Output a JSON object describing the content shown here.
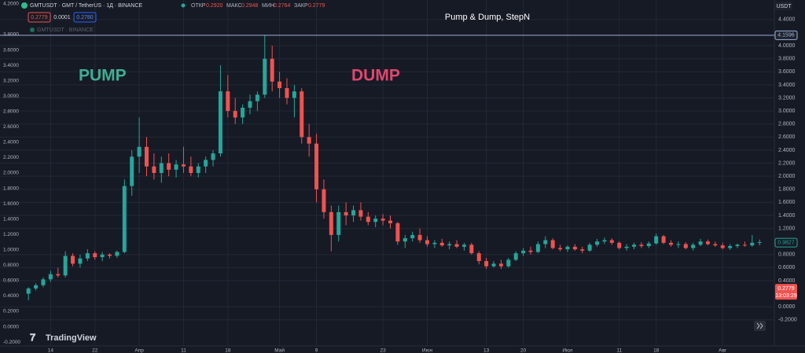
{
  "header": {
    "symbol": "GMTUSDT · GMT / TetherUS · 1Д · BINANCE",
    "ohlc": [
      {
        "label": "ОТКР",
        "value": "0.2920"
      },
      {
        "label": "МАКС",
        "value": "0.2948"
      },
      {
        "label": "МИН",
        "value": "0.2764"
      },
      {
        "label": "ЗАКР",
        "value": "0.2779"
      }
    ],
    "sell": "0.2779",
    "spread": "0.0001",
    "buy": "0.2780",
    "overlay": "GMTUSDT · BINANCE",
    "currency": "USDT",
    "logo": "TradingView"
  },
  "chart_data": {
    "type": "candlestick",
    "title": "Pump & Dump, StepN",
    "annotations": [
      {
        "text": "PUMP",
        "color": "#3fae92"
      },
      {
        "text": "DUMP",
        "color": "#e0476f"
      }
    ],
    "up_color": "#26a69a",
    "down_color": "#ef5350",
    "grid": true,
    "xlim": [
      -3,
      101
    ],
    "xticks": [
      {
        "value": 3,
        "label": "14"
      },
      {
        "value": 9,
        "label": "22"
      },
      {
        "value": 15,
        "label": "Апр"
      },
      {
        "value": 21,
        "label": "11"
      },
      {
        "value": 27,
        "label": "18"
      },
      {
        "value": 34,
        "label": "Май"
      },
      {
        "value": 39,
        "label": "9"
      },
      {
        "value": 48,
        "label": "23"
      },
      {
        "value": 54,
        "label": "Июн"
      },
      {
        "value": 62,
        "label": "13"
      },
      {
        "value": 67,
        "label": "20"
      },
      {
        "value": 73,
        "label": "Июл"
      },
      {
        "value": 80,
        "label": "11"
      },
      {
        "value": 85,
        "label": "18"
      },
      {
        "value": 94,
        "label": "Авг"
      }
    ],
    "ylim": [
      -0.6,
      4.7
    ],
    "yticks": [
      {
        "value": 4.4,
        "label": "4.4000"
      },
      {
        "value": 4.0,
        "label": "4.0000"
      },
      {
        "value": 3.8,
        "label": "3.8000"
      },
      {
        "value": 3.6,
        "label": "3.6000"
      },
      {
        "value": 3.4,
        "label": "3.4000"
      },
      {
        "value": 3.2,
        "label": "3.2000"
      },
      {
        "value": 3.0,
        "label": "3.0000"
      },
      {
        "value": 2.8,
        "label": "2.8000"
      },
      {
        "value": 2.6,
        "label": "2.6000"
      },
      {
        "value": 2.4,
        "label": "2.4000"
      },
      {
        "value": 2.2,
        "label": "2.2000"
      },
      {
        "value": 2.0,
        "label": "2.0000"
      },
      {
        "value": 1.8,
        "label": "1.8000"
      },
      {
        "value": 1.6,
        "label": "1.6000"
      },
      {
        "value": 1.4,
        "label": "1.4000"
      },
      {
        "value": 1.2,
        "label": "1.2000"
      },
      {
        "value": 0.8,
        "label": "0.8000"
      },
      {
        "value": 0.6,
        "label": "0.6000"
      },
      {
        "value": 0.4,
        "label": "0.4000"
      },
      {
        "value": 0,
        "label": "0.0000"
      },
      {
        "value": -0.2,
        "label": "-0.2000"
      }
    ],
    "left_ylim": [
      -0.25,
      4.25
    ],
    "left_yticks": [
      {
        "value": 4.2,
        "label": "4.2000"
      },
      {
        "value": 3.8,
        "label": "3.8000"
      },
      {
        "value": 3.6,
        "label": "3.6000"
      },
      {
        "value": 3.4,
        "label": "3.4000"
      },
      {
        "value": 3.2,
        "label": "3.2000"
      },
      {
        "value": 3.0,
        "label": "3.0000"
      },
      {
        "value": 2.8,
        "label": "2.8000"
      },
      {
        "value": 2.6,
        "label": "2.6000"
      },
      {
        "value": 2.4,
        "label": "2.4000"
      },
      {
        "value": 2.2,
        "label": "2.2000"
      },
      {
        "value": 2.0,
        "label": "2.0000"
      },
      {
        "value": 1.8,
        "label": "1.8000"
      },
      {
        "value": 1.6,
        "label": "1.6000"
      },
      {
        "value": 1.4,
        "label": "1.4000"
      },
      {
        "value": 1.2,
        "label": "1.2000"
      },
      {
        "value": 1.0,
        "label": "1.0000"
      },
      {
        "value": 0.8,
        "label": "0.8000"
      },
      {
        "value": 0.6,
        "label": "0.6000"
      },
      {
        "value": 0.4,
        "label": "0.4000"
      },
      {
        "value": 0.2,
        "label": "0.2000"
      },
      {
        "value": 0,
        "label": "0.0000"
      },
      {
        "value": -0.2,
        "label": "-0.2000"
      }
    ],
    "high_line": 4.1596,
    "high_line_color": "#9db2d6",
    "mark_price": 0.9827,
    "last_price": 0.2779,
    "countdown": "13:03:29",
    "x": [
      0,
      1,
      2,
      3,
      4,
      5,
      6,
      7,
      8,
      9,
      10,
      11,
      12,
      13,
      14,
      15,
      16,
      17,
      18,
      19,
      20,
      21,
      22,
      23,
      24,
      25,
      26,
      27,
      28,
      29,
      30,
      31,
      32,
      33,
      34,
      35,
      36,
      37,
      38,
      39,
      40,
      41,
      42,
      43,
      44,
      45,
      46,
      47,
      48,
      49,
      50,
      51,
      52,
      53,
      54,
      55,
      56,
      57,
      58,
      59,
      60,
      61,
      62,
      63,
      64,
      65,
      66,
      67,
      68,
      69,
      70,
      71,
      72,
      73,
      74,
      75,
      76,
      77,
      78,
      79,
      80,
      81,
      82,
      83,
      84,
      85,
      86,
      87,
      88,
      89,
      90,
      91,
      92,
      93,
      94,
      95,
      96,
      97,
      98,
      99
    ],
    "open": [
      0.2,
      0.28,
      0.33,
      0.42,
      0.5,
      0.48,
      0.78,
      0.66,
      0.74,
      0.82,
      0.76,
      0.8,
      0.78,
      0.84,
      1.85,
      2.3,
      2.45,
      2.15,
      2.05,
      2.2,
      2.1,
      2.18,
      2.15,
      2.05,
      2.15,
      2.25,
      2.35,
      3.3,
      3.0,
      2.9,
      3.05,
      3.15,
      3.25,
      3.8,
      3.45,
      3.35,
      3.2,
      3.3,
      2.6,
      2.5,
      1.8,
      1.45,
      1.1,
      1.45,
      1.4,
      1.48,
      1.38,
      1.3,
      1.35,
      1.32,
      1.28,
      1.0,
      1.05,
      1.1,
      1.02,
      0.96,
      0.98,
      0.94,
      0.96,
      0.92,
      0.95,
      0.82,
      0.7,
      0.62,
      0.66,
      0.62,
      0.72,
      0.82,
      0.86,
      0.84,
      0.96,
      1.02,
      0.9,
      0.88,
      0.92,
      0.88,
      0.86,
      0.95,
      1.0,
      1.02,
      0.98,
      0.9,
      0.92,
      0.95,
      0.93,
      0.97,
      1.08,
      0.98,
      0.95,
      0.96,
      0.9,
      0.95,
      1.0,
      0.96,
      0.94,
      0.9,
      0.93,
      0.95,
      0.94,
      0.98
    ],
    "high": [
      0.3,
      0.36,
      0.45,
      0.55,
      0.6,
      0.85,
      0.82,
      0.8,
      0.88,
      0.85,
      0.84,
      0.82,
      0.86,
      1.95,
      2.4,
      2.9,
      2.6,
      2.35,
      2.3,
      2.35,
      2.25,
      2.45,
      2.3,
      2.2,
      2.3,
      2.4,
      3.7,
      3.55,
      3.2,
      3.1,
      3.25,
      3.3,
      4.16,
      4.0,
      3.6,
      3.5,
      3.4,
      3.35,
      2.8,
      2.65,
      1.95,
      1.55,
      1.55,
      1.6,
      1.55,
      1.6,
      1.45,
      1.4,
      1.42,
      1.4,
      1.3,
      1.1,
      1.15,
      1.2,
      1.08,
      1.02,
      1.04,
      1.0,
      1.02,
      0.98,
      0.98,
      0.85,
      0.75,
      0.7,
      0.72,
      0.75,
      0.85,
      0.9,
      0.92,
      1.0,
      1.08,
      1.05,
      0.95,
      0.94,
      0.96,
      0.92,
      0.98,
      1.04,
      1.06,
      1.05,
      1.0,
      0.96,
      0.98,
      0.99,
      1.0,
      1.12,
      1.1,
      1.02,
      1.0,
      0.99,
      0.98,
      1.04,
      1.03,
      1.0,
      0.98,
      0.96,
      0.97,
      1.0,
      1.1,
      1.03
    ],
    "low": [
      0.1,
      0.25,
      0.3,
      0.38,
      0.45,
      0.45,
      0.62,
      0.6,
      0.7,
      0.72,
      0.7,
      0.74,
      0.75,
      0.82,
      1.7,
      2.05,
      2.0,
      1.95,
      1.9,
      2.0,
      1.98,
      2.05,
      2.0,
      1.98,
      2.05,
      2.15,
      2.3,
      2.9,
      2.8,
      2.8,
      2.95,
      3.0,
      3.2,
      3.3,
      3.2,
      3.1,
      2.9,
      2.5,
      2.3,
      1.6,
      1.35,
      0.85,
      1.0,
      1.25,
      1.3,
      1.32,
      1.25,
      1.22,
      1.25,
      1.2,
      0.95,
      0.9,
      1.0,
      0.98,
      0.92,
      0.9,
      0.92,
      0.88,
      0.9,
      0.86,
      0.8,
      0.65,
      0.58,
      0.6,
      0.58,
      0.6,
      0.7,
      0.78,
      0.8,
      0.82,
      0.9,
      0.88,
      0.85,
      0.84,
      0.86,
      0.82,
      0.84,
      0.92,
      0.96,
      0.95,
      0.88,
      0.86,
      0.88,
      0.9,
      0.9,
      0.95,
      0.96,
      0.92,
      0.9,
      0.88,
      0.86,
      0.93,
      0.94,
      0.92,
      0.88,
      0.87,
      0.9,
      0.92,
      0.92,
      0.94
    ],
    "close": [
      0.28,
      0.33,
      0.42,
      0.5,
      0.48,
      0.78,
      0.66,
      0.74,
      0.82,
      0.76,
      0.8,
      0.78,
      0.84,
      1.85,
      2.3,
      2.45,
      2.15,
      2.05,
      2.2,
      2.1,
      2.18,
      2.15,
      2.05,
      2.15,
      2.25,
      2.35,
      3.3,
      3.0,
      2.9,
      3.05,
      3.15,
      3.25,
      3.8,
      3.45,
      3.35,
      3.2,
      3.3,
      2.6,
      2.5,
      1.8,
      1.45,
      1.1,
      1.45,
      1.4,
      1.48,
      1.38,
      1.3,
      1.35,
      1.32,
      1.28,
      1.0,
      1.05,
      1.1,
      1.02,
      0.96,
      0.98,
      0.94,
      0.96,
      0.92,
      0.95,
      0.82,
      0.7,
      0.62,
      0.66,
      0.62,
      0.72,
      0.82,
      0.86,
      0.84,
      0.96,
      1.02,
      0.9,
      0.88,
      0.92,
      0.88,
      0.86,
      0.95,
      1.0,
      1.02,
      0.98,
      0.9,
      0.92,
      0.95,
      0.93,
      0.97,
      1.08,
      0.98,
      0.95,
      0.96,
      0.9,
      0.95,
      1.0,
      0.96,
      0.94,
      0.9,
      0.93,
      0.95,
      0.94,
      0.98,
      0.99
    ]
  }
}
